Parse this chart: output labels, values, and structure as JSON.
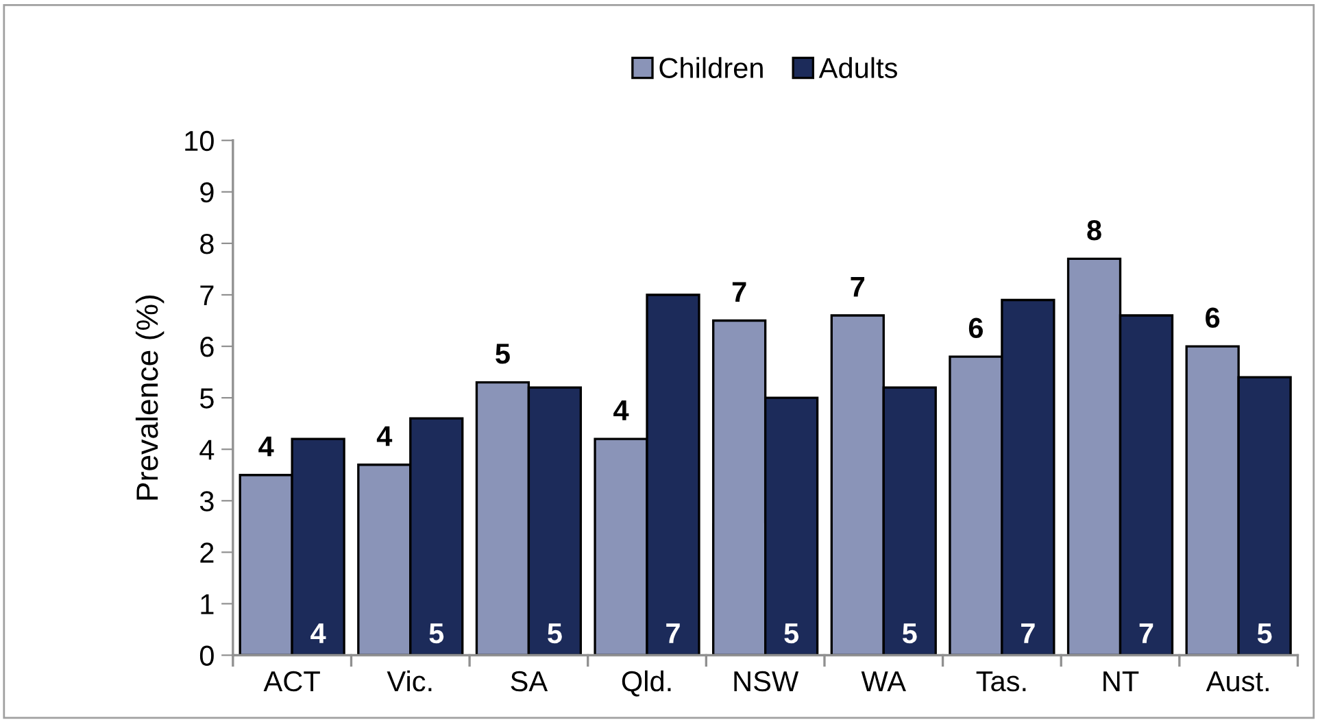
{
  "chart_data": {
    "type": "bar",
    "ylabel": "Prevalence (%)",
    "categories": [
      "ACT",
      "Vic.",
      "SA",
      "Qld.",
      "NSW",
      "WA",
      "Tas.",
      "NT",
      "Aust."
    ],
    "series": [
      {
        "name": "Children",
        "color": "#8a94b8",
        "values": [
          3.5,
          3.7,
          5.3,
          4.2,
          6.5,
          6.6,
          5.8,
          7.7,
          6.0
        ],
        "value_labels": [
          "4",
          "4",
          "5",
          "4",
          "7",
          "7",
          "6",
          "8",
          "6"
        ]
      },
      {
        "name": "Adults",
        "color": "#1c2b5a",
        "values": [
          4.2,
          4.6,
          5.2,
          7.0,
          5.0,
          5.2,
          6.9,
          6.6,
          5.4
        ],
        "value_labels": [
          "4",
          "5",
          "5",
          "7",
          "5",
          "5",
          "7",
          "7",
          "5"
        ]
      }
    ],
    "ylim": [
      0,
      10
    ],
    "yticks": [
      0,
      1,
      2,
      3,
      4,
      5,
      6,
      7,
      8,
      9,
      10
    ],
    "grid": false,
    "legend": "top"
  }
}
